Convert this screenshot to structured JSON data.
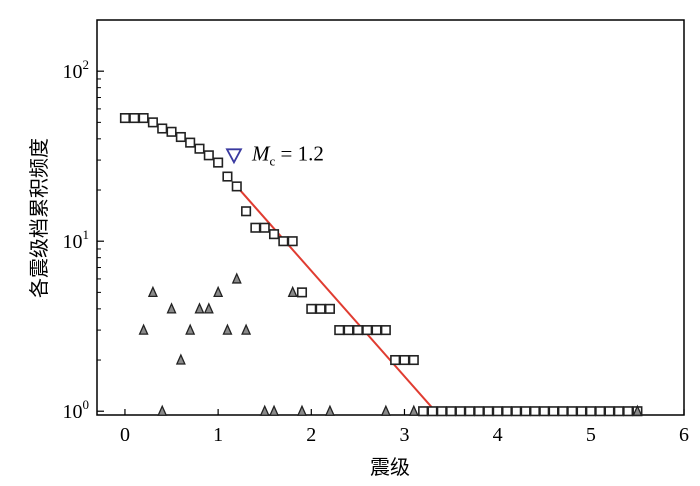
{
  "chart_data": {
    "type": "scatter",
    "title": "",
    "xlabel": "震级",
    "ylabel": "各震级档累积频度",
    "xlim": [
      -0.3,
      6
    ],
    "ylim_log": [
      0.95,
      200
    ],
    "yscale": "log",
    "grid": false,
    "legend": "none",
    "x_ticks": [
      {
        "value": 0,
        "label": "0"
      },
      {
        "value": 1,
        "label": "1"
      },
      {
        "value": 2,
        "label": "2"
      },
      {
        "value": 3,
        "label": "3"
      },
      {
        "value": 4,
        "label": "4"
      },
      {
        "value": 5,
        "label": "5"
      },
      {
        "value": 6,
        "label": "6"
      }
    ],
    "y_ticks": [
      {
        "value": 1,
        "base": "10",
        "exp": "0"
      },
      {
        "value": 10,
        "base": "10",
        "exp": "1"
      },
      {
        "value": 100,
        "base": "10",
        "exp": "2"
      }
    ],
    "series": [
      {
        "marker": "square",
        "color": "#222222",
        "points": [
          [
            0.0,
            53
          ],
          [
            0.1,
            53
          ],
          [
            0.2,
            53
          ],
          [
            0.3,
            50
          ],
          [
            0.4,
            46
          ],
          [
            0.5,
            44
          ],
          [
            0.6,
            41
          ],
          [
            0.7,
            38
          ],
          [
            0.8,
            35
          ],
          [
            0.9,
            32
          ],
          [
            1.0,
            29
          ],
          [
            1.1,
            24
          ],
          [
            1.2,
            21
          ],
          [
            1.3,
            15
          ],
          [
            1.4,
            12
          ],
          [
            1.5,
            12
          ],
          [
            1.6,
            11
          ],
          [
            1.7,
            10
          ],
          [
            1.8,
            10
          ],
          [
            1.9,
            5
          ],
          [
            2.0,
            4
          ],
          [
            2.1,
            4
          ],
          [
            2.2,
            4
          ],
          [
            2.3,
            3
          ],
          [
            2.4,
            3
          ],
          [
            2.5,
            3
          ],
          [
            2.6,
            3
          ],
          [
            2.7,
            3
          ],
          [
            2.8,
            3
          ],
          [
            2.9,
            2
          ],
          [
            3.0,
            2
          ],
          [
            3.1,
            2
          ],
          [
            3.2,
            1
          ],
          [
            3.3,
            1
          ],
          [
            3.4,
            1
          ],
          [
            3.5,
            1
          ],
          [
            3.6,
            1
          ],
          [
            3.7,
            1
          ],
          [
            3.8,
            1
          ],
          [
            3.9,
            1
          ],
          [
            4.0,
            1
          ],
          [
            4.1,
            1
          ],
          [
            4.2,
            1
          ],
          [
            4.3,
            1
          ],
          [
            4.4,
            1
          ],
          [
            4.5,
            1
          ],
          [
            4.6,
            1
          ],
          [
            4.7,
            1
          ],
          [
            4.8,
            1
          ],
          [
            4.9,
            1
          ],
          [
            5.0,
            1
          ],
          [
            5.1,
            1
          ],
          [
            5.2,
            1
          ],
          [
            5.3,
            1
          ],
          [
            5.4,
            1
          ],
          [
            5.5,
            1
          ]
        ]
      },
      {
        "marker": "triangle",
        "color": "#222222",
        "points": [
          [
            0.2,
            3
          ],
          [
            0.3,
            5
          ],
          [
            0.4,
            1
          ],
          [
            0.5,
            4
          ],
          [
            0.6,
            2
          ],
          [
            0.7,
            3
          ],
          [
            0.8,
            4
          ],
          [
            0.9,
            4
          ],
          [
            1.0,
            5
          ],
          [
            1.1,
            3
          ],
          [
            1.2,
            6
          ],
          [
            1.3,
            3
          ],
          [
            1.5,
            1
          ],
          [
            1.6,
            1
          ],
          [
            1.8,
            5
          ],
          [
            1.9,
            1
          ],
          [
            2.2,
            1
          ],
          [
            2.8,
            1
          ],
          [
            3.1,
            1
          ],
          [
            5.5,
            1
          ]
        ]
      }
    ],
    "fit_line": {
      "color": "#e03c31",
      "from": [
        1.2,
        21
      ],
      "to": [
        3.33,
        1
      ]
    },
    "mc_marker": {
      "x": 1.17,
      "y": 32,
      "color": "#3a3aa0",
      "label_M": "M",
      "label_sub": "c",
      "label_rest": " = 1.2"
    }
  }
}
